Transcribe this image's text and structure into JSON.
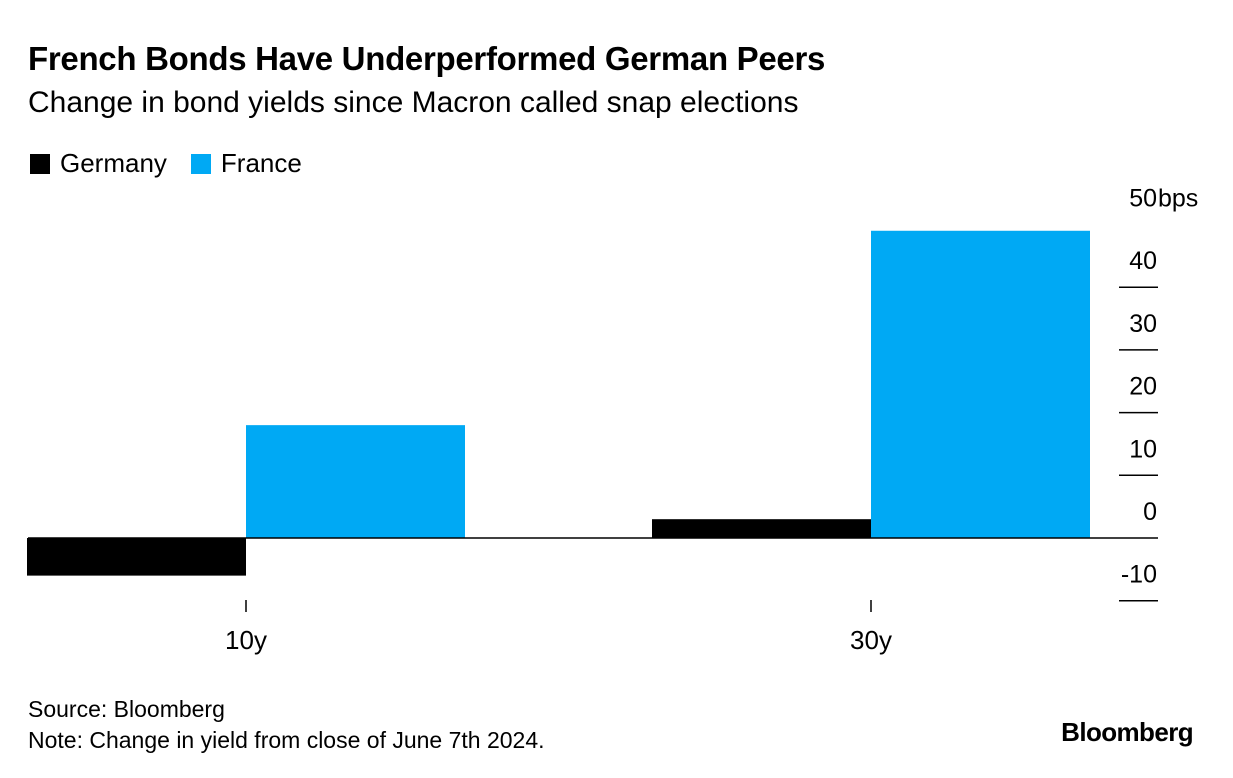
{
  "header": {
    "title": "French Bonds Have Underperformed German Peers",
    "subtitle": "Change in bond yields since Macron called snap elections"
  },
  "legend": {
    "items": [
      {
        "label": "Germany",
        "color": "#000000"
      },
      {
        "label": "France",
        "color": "#00a9f4"
      }
    ]
  },
  "chart_data": {
    "type": "bar",
    "title": "French Bonds Have Underperformed German Peers",
    "subtitle": "Change in bond yields since Macron called snap elections",
    "categories": [
      "10y",
      "30y"
    ],
    "series": [
      {
        "name": "Germany",
        "color": "#000000",
        "values": [
          -6,
          3
        ]
      },
      {
        "name": "France",
        "color": "#00a9f4",
        "values": [
          18,
          49
        ]
      }
    ],
    "ylim": [
      -10,
      50
    ],
    "yticks": [
      -10,
      0,
      10,
      20,
      30,
      40,
      50
    ],
    "ytick_labels": [
      "-10",
      "0",
      "10",
      "20",
      "30",
      "40",
      "50"
    ],
    "yunit": "bps",
    "xlabel": "",
    "ylabel": "",
    "y_axis_position": "right",
    "legend_position": "top-left",
    "grid": false
  },
  "footer": {
    "source": "Source: Bloomberg",
    "note": "Note: Change in yield from close of June 7th 2024.",
    "brand": "Bloomberg"
  }
}
